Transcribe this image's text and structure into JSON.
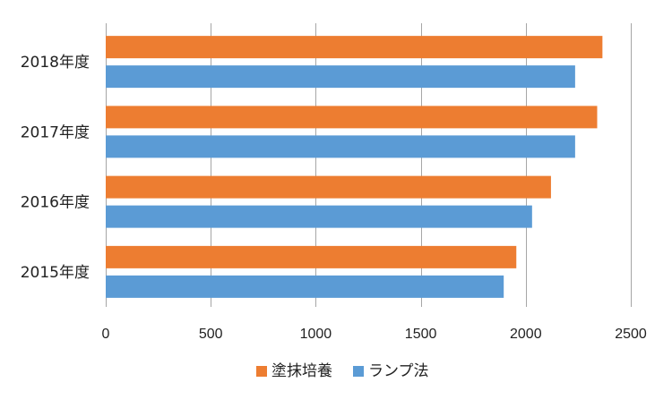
{
  "chart_data": {
    "type": "bar",
    "orientation": "horizontal",
    "categories": [
      "2018年度",
      "2017年度",
      "2016年度",
      "2015年度"
    ],
    "series": [
      {
        "name": "塗抹培養",
        "color": "#ED7D31",
        "values": [
          2365,
          2340,
          2120,
          1955
        ]
      },
      {
        "name": "ランプ法",
        "color": "#5B9BD5",
        "values": [
          2235,
          2235,
          2030,
          1895
        ]
      }
    ],
    "xlim": [
      0,
      2500
    ],
    "xticks": [
      0,
      500,
      1000,
      1500,
      2000,
      2500
    ],
    "xlabel": "",
    "ylabel": "",
    "title": "",
    "grid": "vertical",
    "legend_position": "bottom"
  }
}
